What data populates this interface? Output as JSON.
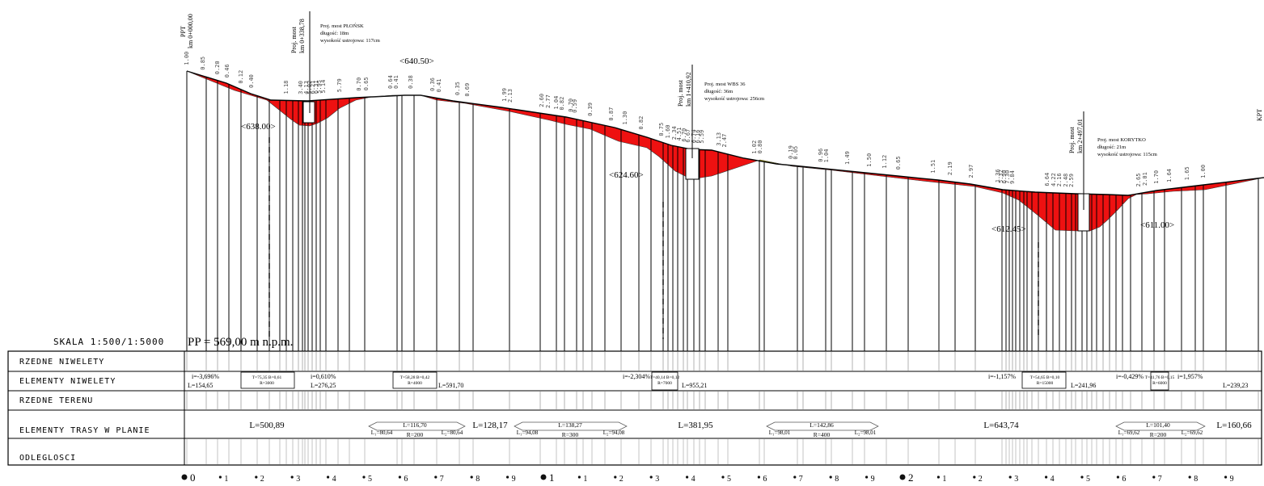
{
  "scale_label": "SKALA 1:500/1:5000",
  "datum_label": "PP = 569,00 m n.p.m.",
  "row_labels": [
    "RZEDNE NIWELETY",
    "ELEMENTY NIWELETY",
    "RZEDNE TERENU",
    "ELEMENTY TRASY W PLANIE",
    "ODLEGLOSCI"
  ],
  "start_marker": {
    "code": "PPT",
    "km": "km 0+000,00"
  },
  "end_marker": {
    "code": "KPT"
  },
  "bridges": [
    {
      "axis": "Proj. most",
      "km": "km 0+338,78",
      "title": "Proj. most PŁOŃSK",
      "length": "długość: 18m",
      "height": "wysokość ustrojowa: 117cm"
    },
    {
      "axis": "Proj. most",
      "km": "km 1+410,92",
      "title": "Proj. most WBS 36",
      "length": "długość: 36m",
      "height": "wysokość ustrojowa: 256cm"
    },
    {
      "axis": "Proj. most",
      "km": "km 2+497,01",
      "title": "Proj. most KORYTKO",
      "length": "długość: 21m",
      "height": "wysokość ustrojowa: 115cm"
    }
  ],
  "extreme_labels": [
    "638.00",
    "640.50",
    "624.60",
    "612.45",
    "611.00"
  ],
  "depth_labels": [
    "1.00",
    "0.85",
    "0.20",
    "0.46",
    "0.12",
    "0.40",
    "1.18",
    "3.40",
    "4.13",
    "5.02",
    "6.21",
    "6.31",
    "5.95",
    "5.14",
    "5.79",
    "0.70",
    "0.65",
    "0.64",
    "0.41",
    "0.38",
    "0.36",
    "0.41",
    "0.35",
    "0.69",
    "1.99",
    "2.13",
    "2.60",
    "2.77",
    "1.04",
    "0.82",
    "0.70",
    "0.59",
    "0.39",
    "0.87",
    "1.30",
    "0.82",
    "0.75",
    "1.60",
    "2.34",
    "4.51",
    "6.70",
    "6.67",
    "6.74",
    "6.16",
    "5.59",
    "3.13",
    "2.47",
    "1.02",
    "0.80",
    "0.19",
    "0.05",
    "0.96",
    "1.04",
    "1.49",
    "1.50",
    "1.12",
    "0.65",
    "1.51",
    "2.19",
    "2.97",
    "1.36",
    "5.32",
    "6.90",
    "7.30",
    "9.84",
    "6.64",
    "4.22",
    "2.16",
    "2.48",
    "2.59",
    "2.65",
    "2.01",
    "1.70",
    "1.64",
    "1.65",
    "1.00"
  ],
  "grade_elements": [
    {
      "slope": "i=-3,696%",
      "length": "L=154,65"
    },
    {
      "curve": "T=75,35 B=0,61 R=3000"
    },
    {
      "slope": "i=0,610%",
      "length": "L=276,25"
    },
    {
      "curve": "T=58,28 B=0,42 R=4000"
    },
    {
      "length": "L=591,70"
    },
    {
      "slope": "i=-2,304%"
    },
    {
      "curve": "T=40,14 B=0,12 R=7000"
    },
    {
      "length": "L=955,21"
    },
    {
      "slope": "i=-1,157%"
    },
    {
      "curve": "T=54,65 B=0,10 R=15000"
    },
    {
      "length": "L=241,96"
    },
    {
      "slope": "i=-0,429%"
    },
    {
      "curve": "T=41,76 B=0,15 R=6000"
    },
    {
      "slope": "i=1,957%",
      "length": "L=239,23"
    }
  ],
  "plan_elements": {
    "straights": [
      "L=500,89",
      "L=128,17",
      "L=381,95",
      "L=643,74",
      "L=160,66"
    ],
    "curves": [
      {
        "L": "L=116,70",
        "R": "R=200",
        "L1": "L₁=80,64",
        "L2": "L₂=80,64"
      },
      {
        "L": "L=138,27",
        "R": "R=300",
        "L1": "L₁=94,08",
        "L2": "L₂=94,08"
      },
      {
        "L": "L=142,86",
        "R": "R=400",
        "L1": "L₁=98,01",
        "L2": "L₂=98,01"
      },
      {
        "L": "L=101,40",
        "R": "R=200",
        "L1": "L₁=69,62",
        "L2": "L₂=69,62"
      }
    ]
  },
  "km_ticks": [
    "0",
    "1",
    "2",
    "3",
    "4",
    "5",
    "6",
    "7",
    "8",
    "9",
    "1",
    "1",
    "2",
    "3",
    "4",
    "5",
    "6",
    "7",
    "8",
    "9",
    "2",
    "1",
    "2",
    "3",
    "4",
    "5",
    "6",
    "7",
    "8",
    "9"
  ],
  "km_major_indices": [
    0,
    10,
    20
  ],
  "colors": {
    "cut": "#ee1111",
    "fill": "#ffef00",
    "line": "#000000"
  }
}
